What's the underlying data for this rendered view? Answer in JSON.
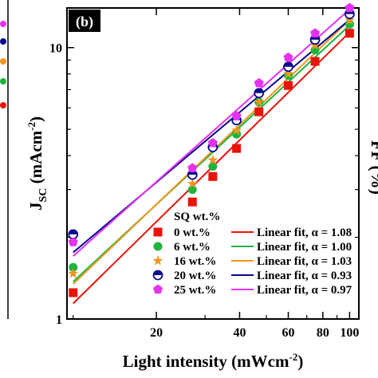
{
  "chart_data": {
    "type": "scatter",
    "panel_label": "(b)",
    "xlabel_main": "Light intensity (mWcm",
    "xlabel_sup": "-2",
    "xlabel_end": ")",
    "ylabel_main": "J",
    "ylabel_sub": "SC",
    "ylabel_mid": " (mAcm",
    "ylabel_sup": "-2",
    "ylabel_end": ")",
    "right_axis_fragment": "FF (%)",
    "x_scale": "log",
    "y_scale": "log",
    "xlim": [
      9.5,
      108
    ],
    "ylim": [
      1,
      14
    ],
    "x_ticks": [
      20,
      40,
      60,
      80,
      100
    ],
    "x_tick_labels": [
      "20",
      "40",
      "60",
      "80",
      "100"
    ],
    "y_ticks": [
      1,
      10
    ],
    "y_tick_labels": [
      "1",
      "10"
    ],
    "legend_title": "SQ wt.%",
    "x": [
      10,
      27,
      32,
      39,
      47,
      60,
      75,
      100
    ],
    "series": [
      {
        "name": "0 wt.%",
        "fit": "Linear fit, α = 1.08",
        "alpha": 1.08,
        "marker": "square",
        "color": "#e8140a",
        "values": [
          1.25,
          2.7,
          3.35,
          4.25,
          5.8,
          7.25,
          8.9,
          11.3
        ]
      },
      {
        "name": "6 wt.%",
        "fit": "Linear fit, α = 1.00",
        "alpha": 1.0,
        "marker": "circle",
        "color": "#1eb43c",
        "values": [
          1.55,
          3.0,
          3.65,
          4.8,
          6.3,
          7.9,
          9.8,
          12.2
        ]
      },
      {
        "name": "16 wt.%",
        "fit": "Linear fit, α = 1.03",
        "alpha": 1.03,
        "marker": "star",
        "color": "#f0961e",
        "values": [
          1.47,
          3.15,
          3.85,
          4.95,
          6.3,
          8.0,
          10.2,
          12.6
        ]
      },
      {
        "name": "20 wt.%",
        "fit": "Linear fit, α = 0.93",
        "alpha": 0.93,
        "marker": "half-circle",
        "color": "#0a0a8c",
        "values": [
          2.05,
          3.4,
          4.3,
          5.4,
          6.8,
          8.5,
          10.7,
          13.3
        ]
      },
      {
        "name": "25 wt.%",
        "fit": "Linear fit, α = 0.97",
        "alpha": 0.97,
        "marker": "pentagon",
        "color": "#e632f0",
        "values": [
          1.92,
          3.6,
          4.45,
          5.6,
          7.4,
          9.2,
          11.3,
          14.0
        ]
      }
    ],
    "grid": false,
    "legend_position": "bottom-right"
  }
}
